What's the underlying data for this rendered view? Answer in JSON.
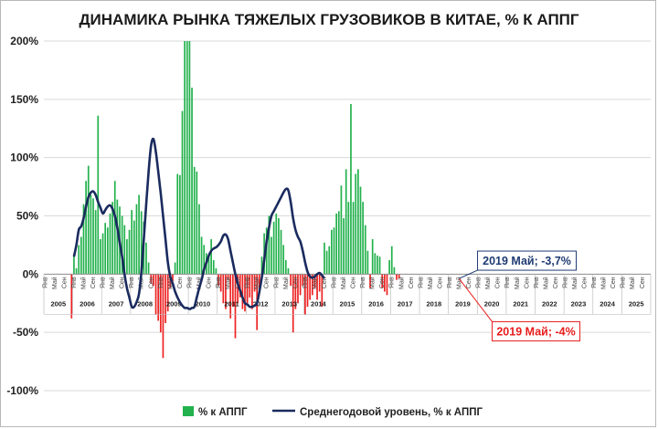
{
  "chart_data": {
    "type": "bar",
    "title": "ДИНАМИКА РЫНКА ТЯЖЕЛЫХ ГРУЗОВИКОВ В КИТАЕ, % К АППГ",
    "y_ticks": [
      "200%",
      "150%",
      "100%",
      "50%",
      "0%",
      "-50%",
      "-100%"
    ],
    "ylim": [
      -100,
      200
    ],
    "month_labels": [
      "Янв",
      "Май",
      "Сен"
    ],
    "years": [
      "2005",
      "2006",
      "2007",
      "2008",
      "2009",
      "2010",
      "2011",
      "2012",
      "2013",
      "2014",
      "2015",
      "2016",
      "2017",
      "2018",
      "2019",
      "2020",
      "2021",
      "2022",
      "2023",
      "2024",
      "2025"
    ],
    "x_start": "2005-01",
    "colors": {
      "positive": "#22b14c",
      "negative": "#ee2222",
      "line": "#1a2b5e",
      "grid": "#d9d9d9",
      "ann_blue": "#1f3b73",
      "ann_red": "#e81c1c"
    },
    "series": [
      {
        "name": "% к АППГ",
        "type": "bar",
        "start": "2005-01",
        "values": [
          0,
          0,
          0,
          0,
          0,
          0,
          0,
          0,
          0,
          0,
          0,
          -38,
          16,
          5,
          25,
          32,
          60,
          80,
          93,
          68,
          65,
          55,
          136,
          30,
          35,
          44,
          40,
          52,
          62,
          80,
          64,
          58,
          50,
          42,
          30,
          38,
          55,
          46,
          60,
          68,
          54,
          45,
          27,
          10,
          -8,
          -10,
          -35,
          -40,
          -50,
          -72,
          -42,
          -32,
          -12,
          -6,
          10,
          86,
          85,
          140,
          200,
          200,
          200,
          160,
          92,
          88,
          60,
          32,
          25,
          18,
          16,
          30,
          12,
          5,
          -10,
          -15,
          -25,
          -30,
          -5,
          -38,
          -28,
          -55,
          -25,
          -20,
          -30,
          -32,
          -25,
          -20,
          -30,
          -15,
          -48,
          -12,
          15,
          35,
          40,
          50,
          32,
          45,
          52,
          48,
          38,
          25,
          12,
          5,
          -10,
          -50,
          -30,
          -25,
          -18,
          -10,
          -35,
          -28,
          -22,
          -18,
          -12,
          -22,
          -15,
          -28,
          27,
          20,
          24,
          38,
          40,
          52,
          54,
          76,
          48,
          90,
          62,
          146,
          62,
          86,
          90,
          75,
          62,
          42,
          20,
          -12,
          30,
          18,
          16,
          15,
          -12,
          -15,
          -18,
          12,
          24,
          6,
          -5,
          -3.7
        ]
      },
      {
        "name": "Среднегодовой уровень, % к АППГ",
        "type": "line",
        "start": "2006-01",
        "values": [
          15,
          25,
          38,
          41,
          48,
          58,
          66,
          70,
          71,
          68,
          62,
          57,
          52,
          55,
          58,
          59,
          56,
          50,
          40,
          27,
          15,
          0,
          -12,
          -20,
          -28,
          -28,
          -24,
          -17,
          2,
          30,
          60,
          88,
          110,
          116,
          105,
          88,
          70,
          50,
          30,
          10,
          -2,
          -8,
          -15,
          -20,
          -24,
          -27,
          -29,
          -29,
          -30,
          -29,
          -28,
          -20,
          -12,
          -5,
          4,
          10,
          16,
          20,
          22,
          23,
          25,
          28,
          33,
          34,
          30,
          20,
          10,
          0,
          -8,
          -14,
          -20,
          -25,
          -26,
          -28,
          -28,
          -27,
          -25,
          -15,
          -3,
          12,
          28,
          40,
          50,
          54,
          58,
          62,
          66,
          70,
          73,
          72,
          62,
          48,
          38,
          32,
          28,
          20,
          10,
          2,
          -2,
          -3,
          -2,
          0,
          1,
          -1,
          -3.7
        ]
      }
    ],
    "legend": [
      "% к АППГ",
      "Среднегодовой уровень, % к АППГ"
    ],
    "legend_position": "bottom",
    "annotations": [
      {
        "text": "2019 Май; -3,7%",
        "x": "2019-05",
        "y": -3.7,
        "color": "blue"
      },
      {
        "text": "2019 Май; -4%",
        "x": "2019-05",
        "y": -4,
        "color": "red"
      }
    ]
  }
}
